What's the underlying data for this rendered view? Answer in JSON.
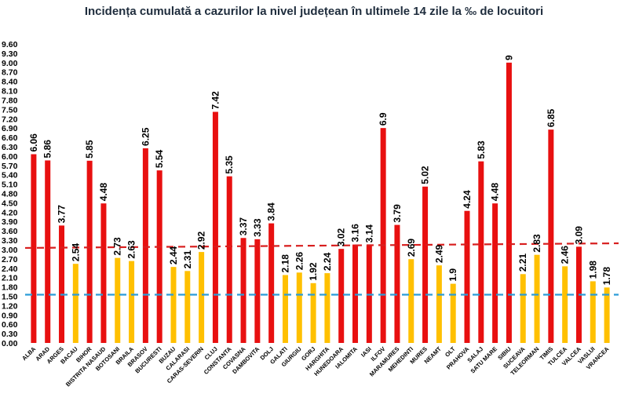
{
  "chart_data": {
    "type": "bar",
    "title": "Incidența cumulată a cazurilor la nivel județean în ultimele 14 zile la ‰ de locuitori",
    "xlabel": "",
    "ylabel": "",
    "ylim": [
      0,
      9.6
    ],
    "ytick_step": 0.3,
    "ytick_labels": [
      "0.00",
      "0.30",
      "0.60",
      "0.90",
      "1.20",
      "1.50",
      "1.80",
      "2.10",
      "2.40",
      "2.70",
      "3.00",
      "3.30",
      "3.60",
      "3.90",
      "4.20",
      "4.50",
      "4.80",
      "5.10",
      "5.40",
      "5.70",
      "6.00",
      "6.30",
      "6.60",
      "6.90",
      "7.20",
      "7.50",
      "7.80",
      "8.10",
      "8.40",
      "8.70",
      "9.00",
      "9.30",
      "9.60"
    ],
    "grid": false,
    "legend": "none",
    "categories": [
      "ALBA",
      "ARAD",
      "ARGES",
      "BACAU",
      "BIHOR",
      "BISTRITA NASAUD",
      "BOTOSANI",
      "BRAILA",
      "BRASOV",
      "BUCURESTI",
      "BUZAU",
      "CALARASI",
      "CARAS-SEVERIN",
      "CLUJ",
      "CONSTANTA",
      "COVASNA",
      "DAMBOVITA",
      "DOLJ",
      "GALATI",
      "GIURGIU",
      "GORJ",
      "HARGHITA",
      "HUNEDOARA",
      "IALOMITA",
      "IASI",
      "ILFOV",
      "MARAMURES",
      "MEHEDINTI",
      "MURES",
      "NEAMT",
      "OLT",
      "PRAHOVA",
      "SALAJ",
      "SATU MARE",
      "SIBIU",
      "SUCEAVA",
      "TELEORMAN",
      "TIMIS",
      "TULCEA",
      "VALCEA",
      "VASLUI",
      "VRANCEA"
    ],
    "values": [
      6.06,
      5.86,
      3.77,
      2.54,
      5.85,
      4.48,
      2.73,
      2.63,
      6.25,
      5.54,
      2.44,
      2.31,
      2.92,
      7.42,
      5.35,
      3.37,
      3.33,
      3.84,
      2.18,
      2.26,
      1.92,
      2.24,
      3.02,
      3.16,
      3.14,
      6.9,
      3.79,
      2.69,
      5.02,
      2.49,
      1.9,
      4.24,
      5.83,
      4.48,
      9,
      2.21,
      2.83,
      6.85,
      2.46,
      3.09,
      1.98,
      1.78
    ],
    "value_labels": [
      "6.06",
      "5.86",
      "3.77",
      "2.54",
      "5.85",
      "4.48",
      "2.73",
      "2.63",
      "6.25",
      "5.54",
      "2.44",
      "2.31",
      "2.92",
      "7.42",
      "5.35",
      "3.37",
      "3.33",
      "3.84",
      "2.18",
      "2.26",
      "1.92",
      "2.24",
      "3.02",
      "3.16",
      "3.14",
      "6.9",
      "3.79",
      "2.69",
      "5.02",
      "2.49",
      "1.9",
      "4.24",
      "5.83",
      "4.48",
      "9",
      "2.21",
      "2.83",
      "6.85",
      "2.46",
      "3.09",
      "1.98",
      "1.78"
    ],
    "bar_colors": {
      "above_3": "#e81010",
      "below_3": "#ffc000"
    },
    "reference_lines": [
      {
        "value_start": 3.05,
        "value_end": 3.2,
        "color": "#d81f1f",
        "style": "dashed"
      },
      {
        "value_start": 1.55,
        "value_end": 1.55,
        "color": "#2b9cd8",
        "style": "dashed"
      }
    ]
  }
}
